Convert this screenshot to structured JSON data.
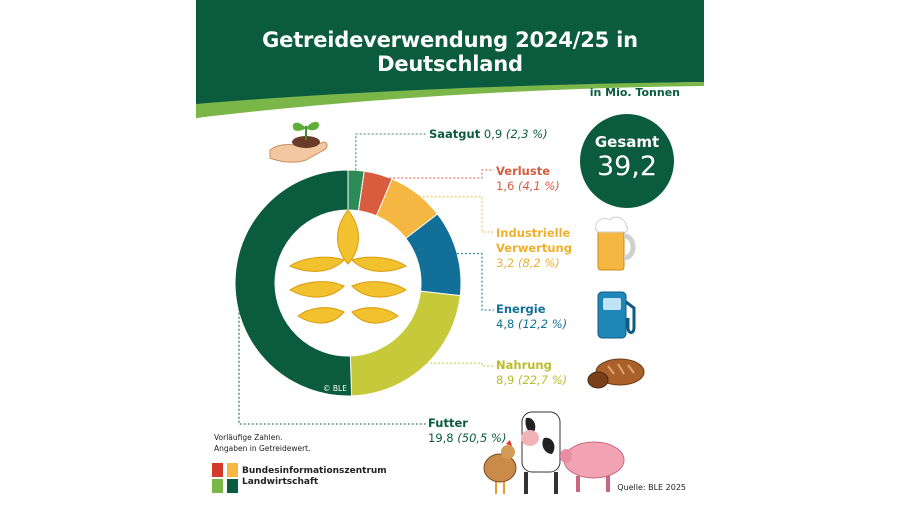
{
  "title": "Getreideverwendung 2024/25 in Deutschland",
  "unit": "in Mio. Tonnen",
  "total": {
    "label": "Gesamt",
    "value": "39,2"
  },
  "note": [
    "Vorläufige Zahlen.",
    "Angaben in Getreidewert."
  ],
  "org": [
    "Bundesinformationszentrum",
    "Landwirtschaft"
  ],
  "source": "Quelle: BLE 2025",
  "copyright": "© BLE",
  "colors": {
    "brand": "#0b5b3e",
    "saatgut": "#2e8b57",
    "verluste": "#d95c3f",
    "industrie": "#f5b642",
    "energie": "#126f97",
    "nahrung": "#c6c93a",
    "futter": "#0b5b3e"
  },
  "chart_data": {
    "type": "pie",
    "donut": true,
    "unit": "Mio. Tonnen",
    "total": 39.2,
    "categories": [
      "Saatgut",
      "Verluste",
      "Industrielle Verwertung",
      "Energie",
      "Nahrung",
      "Futter"
    ],
    "values": [
      0.9,
      1.6,
      3.2,
      4.8,
      8.9,
      19.8
    ],
    "percents": [
      2.3,
      4.1,
      8.2,
      12.2,
      22.7,
      50.5
    ],
    "labels": [
      {
        "name": "Saatgut",
        "value": "0,9",
        "pct": "(2,3 %)"
      },
      {
        "name": "Verluste",
        "value": "1,6",
        "pct": "(4,1 %)"
      },
      {
        "name": "Industrielle",
        "name2": "Verwertung",
        "value": "3,2",
        "pct": "(8,2 %)"
      },
      {
        "name": "Energie",
        "value": "4,8",
        "pct": "(12,2 %)"
      },
      {
        "name": "Nahrung",
        "value": "8,9",
        "pct": "(22,7 %)"
      },
      {
        "name": "Futter",
        "value": "19,8",
        "pct": "(50,5 %)"
      }
    ]
  }
}
